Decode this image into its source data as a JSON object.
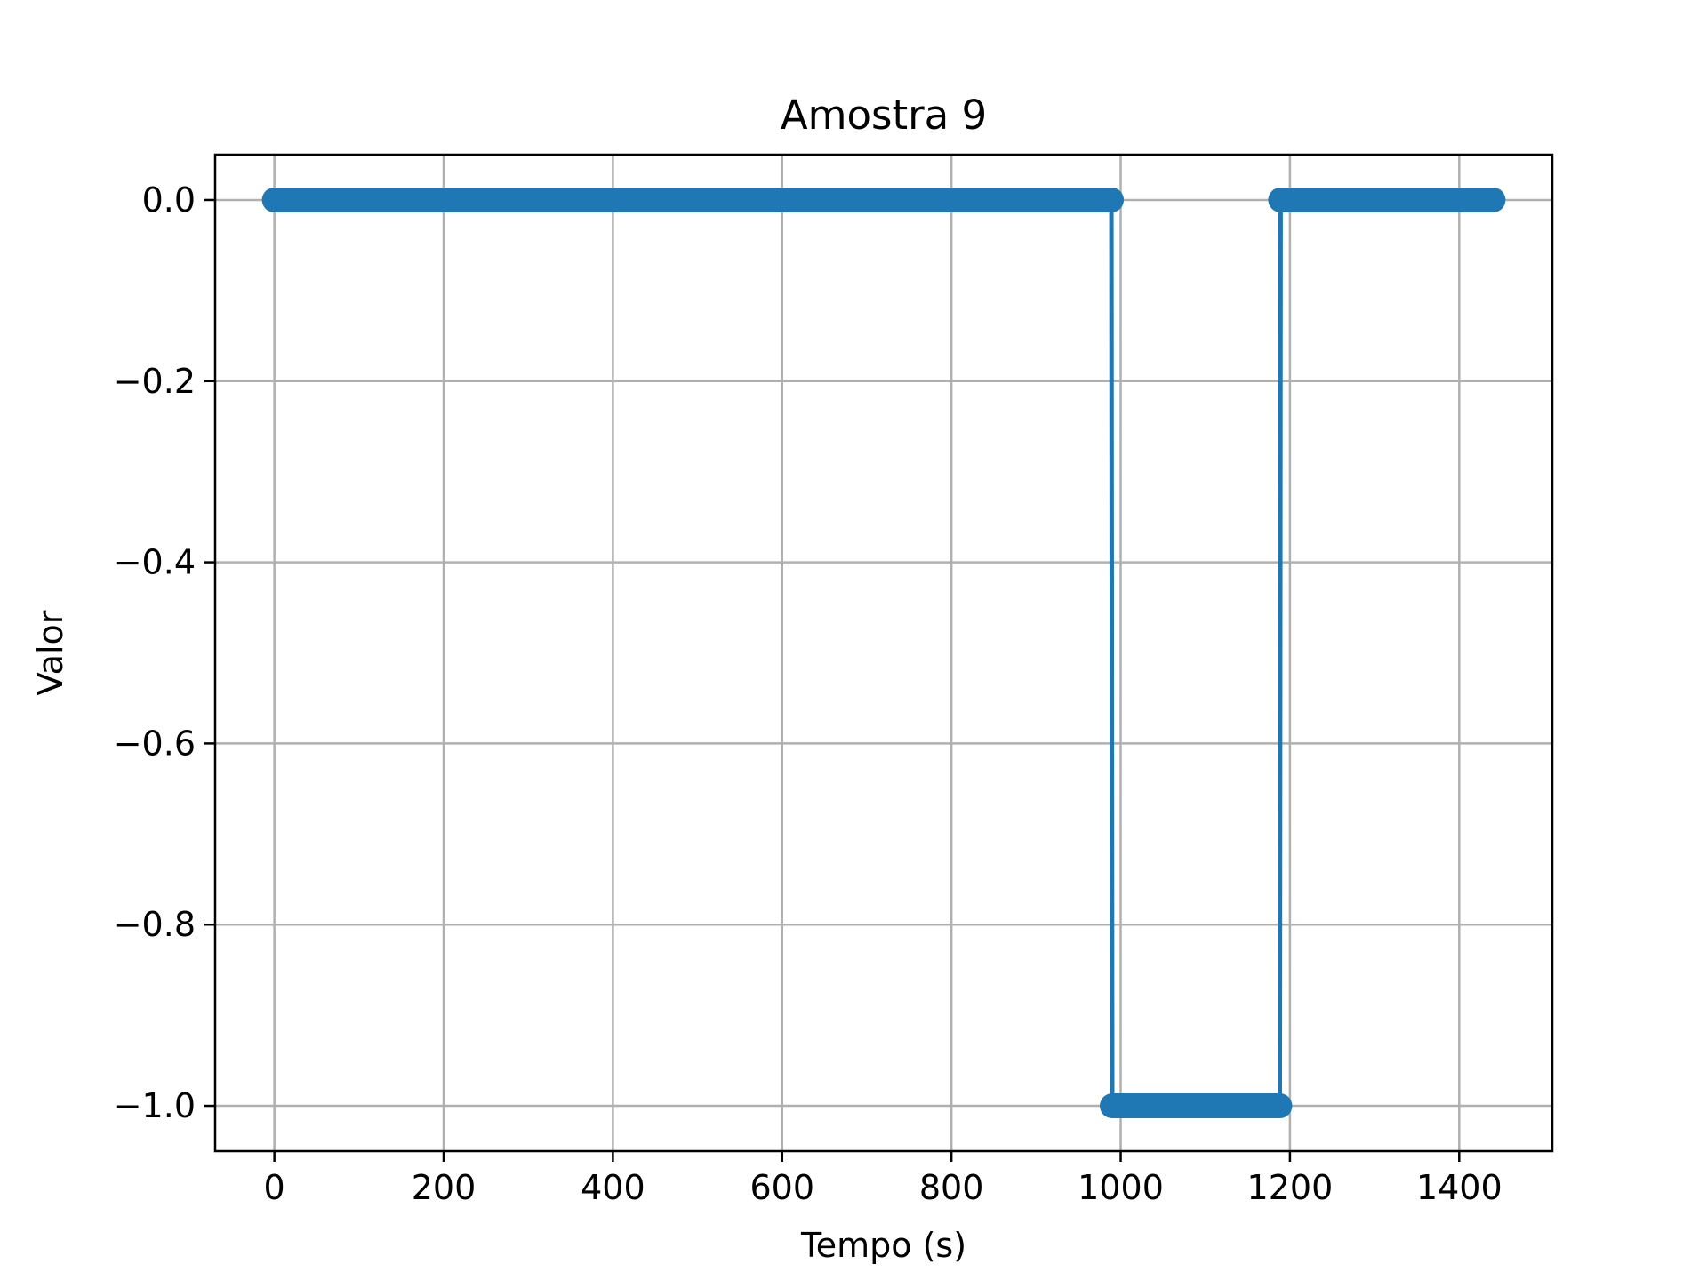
{
  "chart_data": {
    "type": "line",
    "title": "Amostra 9",
    "xlabel": "Tempo (s)",
    "ylabel": "Valor",
    "xlim": [
      -70,
      1510
    ],
    "ylim": [
      -1.05,
      0.05
    ],
    "xticks": [
      {
        "value": 0,
        "label": "0"
      },
      {
        "value": 200,
        "label": "200"
      },
      {
        "value": 400,
        "label": "400"
      },
      {
        "value": 600,
        "label": "600"
      },
      {
        "value": 800,
        "label": "800"
      },
      {
        "value": 1000,
        "label": "1000"
      },
      {
        "value": 1200,
        "label": "1200"
      },
      {
        "value": 1400,
        "label": "1400"
      }
    ],
    "yticks": [
      {
        "value": 0.0,
        "label": "0.0"
      },
      {
        "value": -0.2,
        "label": "−0.2"
      },
      {
        "value": -0.4,
        "label": "−0.4"
      },
      {
        "value": -0.6,
        "label": "−0.6"
      },
      {
        "value": -0.8,
        "label": "−0.8"
      },
      {
        "value": -1.0,
        "label": "−1.0"
      }
    ],
    "grid": true,
    "legend": "none",
    "series": [
      {
        "color": "#1f77b4",
        "marker": "circle",
        "segments": [
          {
            "x_start": 0,
            "x_end": 989,
            "y": 0.0
          },
          {
            "x_start": 990,
            "x_end": 1188,
            "y": -1.0
          },
          {
            "x_start": 1189,
            "x_end": 1440,
            "y": 0.0
          }
        ],
        "x": [
          0,
          989,
          990,
          1188,
          1189,
          1440
        ],
        "y": [
          0.0,
          0.0,
          -1.0,
          -1.0,
          0.0,
          0.0
        ]
      }
    ],
    "colors": {
      "line": "#1f77b4",
      "grid": "#b0b0b0",
      "frame": "#000000",
      "background": "#ffffff"
    }
  }
}
